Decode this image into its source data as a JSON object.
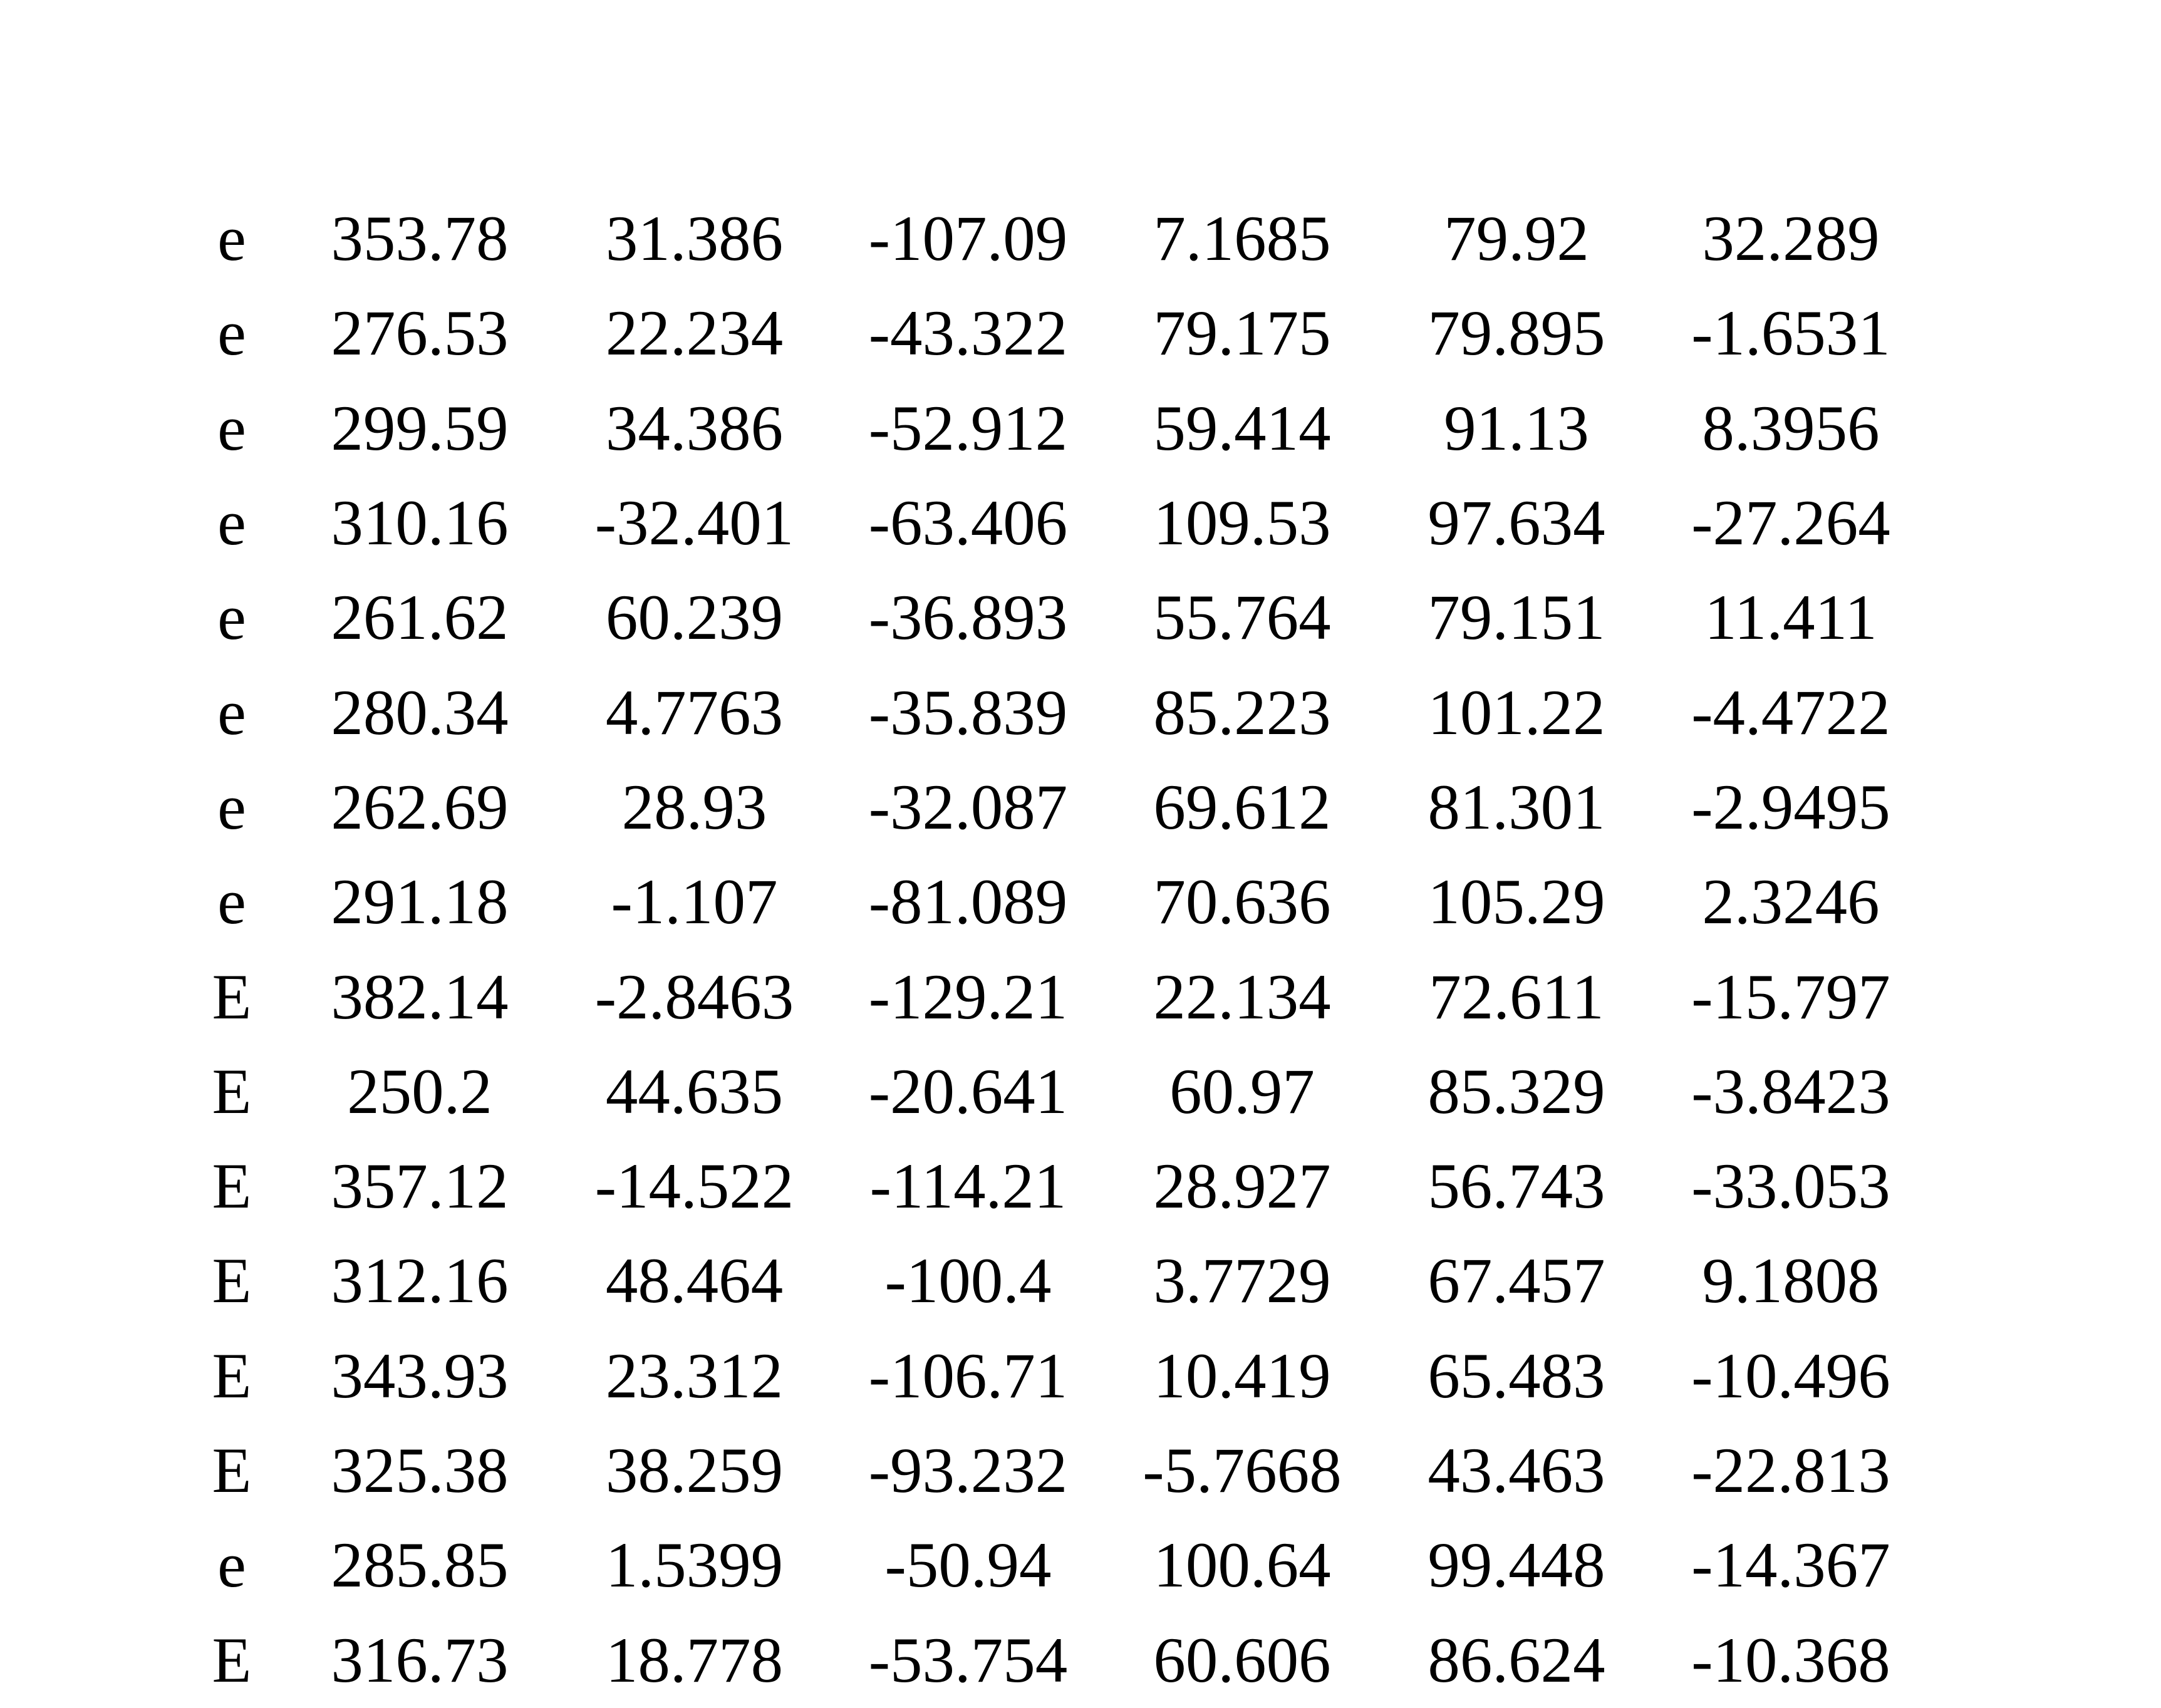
{
  "table": {
    "rows": [
      {
        "label": "e",
        "values": [
          "353.78",
          "31.386",
          "-107.09",
          "7.1685",
          "79.92",
          "32.289"
        ]
      },
      {
        "label": "e",
        "values": [
          "276.53",
          "22.234",
          "-43.322",
          "79.175",
          "79.895",
          "-1.6531"
        ]
      },
      {
        "label": "e",
        "values": [
          "299.59",
          "34.386",
          "-52.912",
          "59.414",
          "91.13",
          "8.3956"
        ]
      },
      {
        "label": "e",
        "values": [
          "310.16",
          "-32.401",
          "-63.406",
          "109.53",
          "97.634",
          "-27.264"
        ]
      },
      {
        "label": "e",
        "values": [
          "261.62",
          "60.239",
          "-36.893",
          "55.764",
          "79.151",
          "11.411"
        ]
      },
      {
        "label": "e",
        "values": [
          "280.34",
          "4.7763",
          "-35.839",
          "85.223",
          "101.22",
          "-4.4722"
        ]
      },
      {
        "label": "e",
        "values": [
          "262.69",
          "28.93",
          "-32.087",
          "69.612",
          "81.301",
          "-2.9495"
        ]
      },
      {
        "label": "e",
        "values": [
          "291.18",
          "-1.107",
          "-81.089",
          "70.636",
          "105.29",
          "2.3246"
        ]
      },
      {
        "label": "E",
        "values": [
          "382.14",
          "-2.8463",
          "-129.21",
          "22.134",
          "72.611",
          "-15.797"
        ]
      },
      {
        "label": "E",
        "values": [
          "250.2",
          "44.635",
          "-20.641",
          "60.97",
          "85.329",
          "-3.8423"
        ]
      },
      {
        "label": "E",
        "values": [
          "357.12",
          "-14.522",
          "-114.21",
          "28.927",
          "56.743",
          "-33.053"
        ]
      },
      {
        "label": "E",
        "values": [
          "312.16",
          "48.464",
          "-100.4",
          "3.7729",
          "67.457",
          "9.1808"
        ]
      },
      {
        "label": "E",
        "values": [
          "343.93",
          "23.312",
          "-106.71",
          "10.419",
          "65.483",
          "-10.496"
        ]
      },
      {
        "label": "E",
        "values": [
          "325.38",
          "38.259",
          "-93.232",
          "-5.7668",
          "43.463",
          "-22.813"
        ]
      },
      {
        "label": "e",
        "values": [
          "285.85",
          "1.5399",
          "-50.94",
          "100.64",
          "99.448",
          "-14.367"
        ]
      },
      {
        "label": "E",
        "values": [
          "316.73",
          "18.778",
          "-53.754",
          "60.606",
          "86.624",
          "-10.368"
        ]
      }
    ]
  }
}
